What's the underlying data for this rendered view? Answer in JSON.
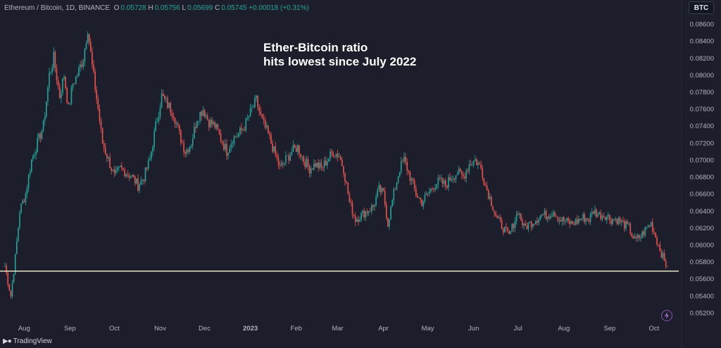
{
  "legend": {
    "symbol": "Ethereum / Bitcoin, 1D, BINANCE",
    "o_label": "O",
    "o": "0.05728",
    "h_label": "H",
    "h": "0.05756",
    "l_label": "L",
    "l": "0.05699",
    "c_label": "C",
    "c": "0.05745",
    "change": "+0.00018 (+0.31%)"
  },
  "badge": "BTC",
  "headline": [
    "Ether-Bitcoin ratio",
    "hits lowest since July 2022"
  ],
  "branding": "TradingView",
  "colors": {
    "background": "#1c1f2b",
    "up": "#26a69a",
    "down": "#ef5350",
    "support_line": "#e8e4c9",
    "axis_text": "#b2b5be"
  },
  "chart_data": {
    "type": "candlestick",
    "interval": "1D",
    "exchange": "BINANCE",
    "ylim": [
      0.051,
      0.087
    ],
    "y_ticks": [
      "0.08600",
      "0.08400",
      "0.08200",
      "0.08000",
      "0.07800",
      "0.07600",
      "0.07400",
      "0.07200",
      "0.07000",
      "0.06800",
      "0.06600",
      "0.06400",
      "0.06200",
      "0.06000",
      "0.05800",
      "0.05600",
      "0.05400",
      "0.05200"
    ],
    "x_ticks": [
      "Aug",
      "Sep",
      "Oct",
      "Nov",
      "Dec",
      "2023",
      "Feb",
      "Mar",
      "Apr",
      "May",
      "Jun",
      "Jul",
      "Aug",
      "Sep",
      "Oct"
    ],
    "x_tick_days": [
      13,
      44,
      74,
      105,
      135,
      166,
      197,
      225,
      256,
      286,
      317,
      347,
      378,
      409,
      439
    ],
    "horizontal_line": 0.0569,
    "anchors": [
      [
        0,
        0.0575
      ],
      [
        4,
        0.054
      ],
      [
        7,
        0.0585
      ],
      [
        10,
        0.064
      ],
      [
        14,
        0.066
      ],
      [
        18,
        0.07
      ],
      [
        22,
        0.072
      ],
      [
        26,
        0.074
      ],
      [
        30,
        0.08
      ],
      [
        33,
        0.082
      ],
      [
        37,
        0.0775
      ],
      [
        40,
        0.08
      ],
      [
        43,
        0.076
      ],
      [
        46,
        0.079
      ],
      [
        49,
        0.08
      ],
      [
        53,
        0.082
      ],
      [
        56,
        0.0855
      ],
      [
        59,
        0.081
      ],
      [
        63,
        0.076
      ],
      [
        66,
        0.072
      ],
      [
        70,
        0.07
      ],
      [
        74,
        0.068
      ],
      [
        78,
        0.069
      ],
      [
        82,
        0.0685
      ],
      [
        86,
        0.068
      ],
      [
        90,
        0.067
      ],
      [
        94,
        0.068
      ],
      [
        98,
        0.07
      ],
      [
        102,
        0.074
      ],
      [
        106,
        0.0775
      ],
      [
        110,
        0.0765
      ],
      [
        114,
        0.0755
      ],
      [
        118,
        0.073
      ],
      [
        122,
        0.071
      ],
      [
        126,
        0.072
      ],
      [
        130,
        0.075
      ],
      [
        134,
        0.076
      ],
      [
        138,
        0.0745
      ],
      [
        142,
        0.074
      ],
      [
        146,
        0.0725
      ],
      [
        150,
        0.071
      ],
      [
        154,
        0.0725
      ],
      [
        158,
        0.073
      ],
      [
        162,
        0.074
      ],
      [
        166,
        0.0755
      ],
      [
        170,
        0.077
      ],
      [
        174,
        0.0745
      ],
      [
        178,
        0.073
      ],
      [
        182,
        0.071
      ],
      [
        186,
        0.069
      ],
      [
        190,
        0.07
      ],
      [
        194,
        0.071
      ],
      [
        198,
        0.0715
      ],
      [
        202,
        0.07
      ],
      [
        206,
        0.069
      ],
      [
        210,
        0.0695
      ],
      [
        214,
        0.069
      ],
      [
        218,
        0.07
      ],
      [
        222,
        0.071
      ],
      [
        226,
        0.0705
      ],
      [
        229,
        0.069
      ],
      [
        233,
        0.065
      ],
      [
        237,
        0.063
      ],
      [
        241,
        0.0635
      ],
      [
        245,
        0.064
      ],
      [
        249,
        0.0645
      ],
      [
        253,
        0.0665
      ],
      [
        256,
        0.066
      ],
      [
        259,
        0.0625
      ],
      [
        263,
        0.066
      ],
      [
        267,
        0.069
      ],
      [
        270,
        0.07
      ],
      [
        274,
        0.068
      ],
      [
        278,
        0.066
      ],
      [
        282,
        0.065
      ],
      [
        286,
        0.066
      ],
      [
        290,
        0.067
      ],
      [
        294,
        0.0675
      ],
      [
        298,
        0.067
      ],
      [
        302,
        0.068
      ],
      [
        306,
        0.0685
      ],
      [
        310,
        0.068
      ],
      [
        314,
        0.0695
      ],
      [
        318,
        0.07
      ],
      [
        322,
        0.069
      ],
      [
        325,
        0.067
      ],
      [
        329,
        0.065
      ],
      [
        333,
        0.063
      ],
      [
        337,
        0.062
      ],
      [
        341,
        0.061
      ],
      [
        344,
        0.0625
      ],
      [
        347,
        0.064
      ],
      [
        351,
        0.062
      ],
      [
        355,
        0.0625
      ],
      [
        359,
        0.063
      ],
      [
        363,
        0.0635
      ],
      [
        367,
        0.0635
      ],
      [
        371,
        0.064
      ],
      [
        375,
        0.063
      ],
      [
        379,
        0.0628
      ],
      [
        383,
        0.0625
      ],
      [
        387,
        0.0628
      ],
      [
        391,
        0.0632
      ],
      [
        395,
        0.063
      ],
      [
        398,
        0.064
      ],
      [
        402,
        0.0635
      ],
      [
        406,
        0.0635
      ],
      [
        410,
        0.063
      ],
      [
        414,
        0.063
      ],
      [
        418,
        0.0625
      ],
      [
        422,
        0.062
      ],
      [
        426,
        0.0605
      ],
      [
        430,
        0.061
      ],
      [
        434,
        0.062
      ],
      [
        437,
        0.0625
      ],
      [
        440,
        0.061
      ],
      [
        443,
        0.0595
      ],
      [
        446,
        0.058
      ],
      [
        448,
        0.05745
      ]
    ]
  }
}
